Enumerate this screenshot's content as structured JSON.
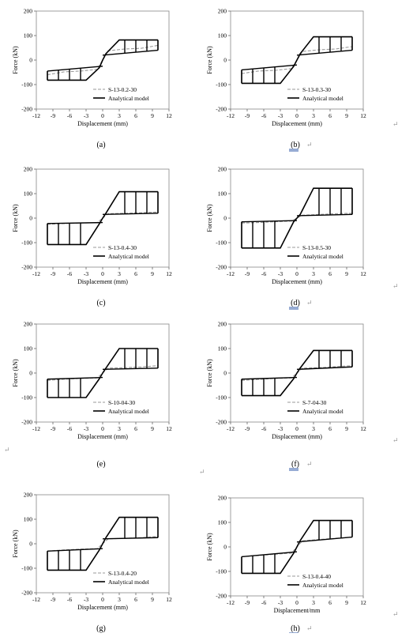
{
  "panels": [
    {
      "caption": "(a)",
      "legend_dashed": "S-13-0.2-30",
      "legend_solid": "Analytical model",
      "xlabel": "Displacement (mm)",
      "ylabel": "Force (kN)",
      "caption_marked": false,
      "return_mark": false
    },
    {
      "caption": "(b)",
      "legend_dashed": "S-13-0.3-30",
      "legend_solid": "Analytical model",
      "xlabel": "Displacement (mm)",
      "ylabel": "Force (kN)",
      "caption_marked": true,
      "return_mark": true
    },
    {
      "caption": "(c)",
      "legend_dashed": "S-13-0.4-30",
      "legend_solid": "Analytical model",
      "xlabel": "Displacement (mm)",
      "ylabel": "Force (kN)",
      "caption_marked": false,
      "return_mark": false
    },
    {
      "caption": "(d)",
      "legend_dashed": "S-13-0.5-30",
      "legend_solid": "Analytical model",
      "xlabel": "Displacement (mm)",
      "ylabel": "Force (kN)",
      "caption_marked": true,
      "return_mark": true
    },
    {
      "caption": "(e)",
      "legend_dashed": "S-10-04-30",
      "legend_solid": "Analytical model",
      "xlabel": "Displacement (mm)",
      "ylabel": "Force (kN)",
      "caption_marked": false,
      "return_mark": false
    },
    {
      "caption": "(f)",
      "legend_dashed": "S-7-04-30",
      "legend_solid": "Analytical model",
      "xlabel": "Displacement (mm)",
      "ylabel": "Force (kN)",
      "caption_marked": true,
      "return_mark": true
    },
    {
      "caption": "(g)",
      "legend_dashed": "S-13-0.4-20",
      "legend_solid": "Analytical model",
      "xlabel": "Displacement (mm)",
      "ylabel": "Force (kN)",
      "caption_marked": false,
      "return_mark": false
    },
    {
      "caption": "(h)",
      "legend_dashed": "S-13-0.4-40",
      "legend_solid": "Analytical model",
      "xlabel": "Displacement/mm",
      "ylabel": "Force (kN)",
      "caption_marked": true,
      "return_mark": true
    }
  ],
  "margin_marks": {
    "symbol": "↵",
    "count": 4
  },
  "chart_data": [
    {
      "type": "line",
      "panel": "(a)",
      "xlabel": "Displacement (mm)",
      "ylabel": "Force (kN)",
      "xlim": [
        -12,
        12
      ],
      "ylim": [
        -200,
        200
      ],
      "xticks": [
        -12,
        -9,
        -6,
        -3,
        0,
        3,
        6,
        9,
        12
      ],
      "yticks": [
        -200,
        -100,
        0,
        100,
        200
      ],
      "grid": false,
      "legend": "lower-right",
      "series": [
        {
          "name": "S-13-0.2-30",
          "style": "dashed",
          "x": [
            -10,
            -7,
            -4,
            -1,
            0,
            1,
            4,
            7,
            10
          ],
          "y": [
            -60,
            -48,
            -45,
            -38,
            0,
            38,
            45,
            48,
            60
          ]
        },
        {
          "name": "Analytical model",
          "style": "solid",
          "yield_pos": 82,
          "yield_neg": -82,
          "upper_lo": 20,
          "upper_hi": 40,
          "lower_lo": -25,
          "lower_hi": -45,
          "dmax": 10,
          "cycles": [
            2,
            4,
            6,
            8,
            10
          ]
        }
      ]
    },
    {
      "type": "line",
      "panel": "(b)",
      "xlabel": "Displacement (mm)",
      "ylabel": "Force (kN)",
      "xlim": [
        -12,
        12
      ],
      "ylim": [
        -200,
        200
      ],
      "xticks": [
        -12,
        -9,
        -6,
        -3,
        0,
        3,
        6,
        9,
        12
      ],
      "yticks": [
        -200,
        -100,
        0,
        100,
        200
      ],
      "grid": false,
      "legend": "lower-right",
      "series": [
        {
          "name": "S-13-0.3-30",
          "style": "dashed",
          "x": [
            -10,
            -7,
            -4,
            -1,
            0,
            1,
            4,
            7,
            10
          ],
          "y": [
            -55,
            -45,
            -42,
            -35,
            0,
            35,
            42,
            45,
            55
          ]
        },
        {
          "name": "Analytical model",
          "style": "solid",
          "yield_pos": 95,
          "yield_neg": -95,
          "upper_lo": 20,
          "upper_hi": 40,
          "lower_lo": -20,
          "lower_hi": -40,
          "dmax": 10,
          "cycles": [
            2,
            4,
            6,
            8,
            10
          ]
        }
      ]
    },
    {
      "type": "line",
      "panel": "(c)",
      "xlabel": "Displacement (mm)",
      "ylabel": "Force (kN)",
      "xlim": [
        -12,
        12
      ],
      "ylim": [
        -200,
        200
      ],
      "xticks": [
        -12,
        -9,
        -6,
        -3,
        0,
        3,
        6,
        9,
        12
      ],
      "yticks": [
        -200,
        -100,
        0,
        100,
        200
      ],
      "grid": false,
      "legend": "lower-right",
      "series": [
        {
          "name": "S-13-0.4-30",
          "style": "dashed",
          "x": [
            -10,
            -7,
            -4,
            -1,
            0,
            1,
            4,
            7,
            10
          ],
          "y": [
            -25,
            -22,
            -20,
            -18,
            0,
            18,
            20,
            22,
            25
          ]
        },
        {
          "name": "Analytical model",
          "style": "solid",
          "yield_pos": 108,
          "yield_neg": -108,
          "upper_lo": 15,
          "upper_hi": 20,
          "lower_lo": -18,
          "lower_hi": -22,
          "dmax": 10,
          "cycles": [
            2,
            4,
            6,
            8,
            10
          ]
        }
      ]
    },
    {
      "type": "line",
      "panel": "(d)",
      "xlabel": "Displacement (mm)",
      "ylabel": "Force (kN)",
      "xlim": [
        -12,
        12
      ],
      "ylim": [
        -200,
        200
      ],
      "xticks": [
        -12,
        -9,
        -6,
        -3,
        0,
        3,
        6,
        9,
        12
      ],
      "yticks": [
        -200,
        -100,
        0,
        100,
        200
      ],
      "grid": false,
      "legend": "lower-right",
      "series": [
        {
          "name": "S-13-0.5-30",
          "style": "dashed",
          "x": [
            -10,
            -7,
            -4,
            -1,
            0,
            1,
            4,
            7,
            10
          ],
          "y": [
            -20,
            -18,
            -15,
            -12,
            0,
            12,
            15,
            18,
            20
          ]
        },
        {
          "name": "Analytical model",
          "style": "solid",
          "yield_pos": 122,
          "yield_neg": -122,
          "upper_lo": 10,
          "upper_hi": 15,
          "lower_lo": -10,
          "lower_hi": -15,
          "dmax": 10,
          "cycles": [
            2,
            4,
            6,
            8,
            10
          ]
        }
      ]
    },
    {
      "type": "line",
      "panel": "(e)",
      "xlabel": "Displacement (mm)",
      "ylabel": "Force (kN)",
      "xlim": [
        -12,
        12
      ],
      "ylim": [
        -200,
        200
      ],
      "xticks": [
        -12,
        -9,
        -6,
        -3,
        0,
        3,
        6,
        9,
        12
      ],
      "yticks": [
        -200,
        -100,
        0,
        100,
        200
      ],
      "grid": false,
      "legend": "lower-right",
      "series": [
        {
          "name": "S-10-04-30",
          "style": "dashed",
          "x": [
            -10,
            -7,
            -4,
            -1,
            0,
            1,
            4,
            7,
            10
          ],
          "y": [
            -30,
            -25,
            -22,
            -20,
            0,
            20,
            22,
            25,
            30
          ]
        },
        {
          "name": "Analytical model",
          "style": "solid",
          "yield_pos": 100,
          "yield_neg": -100,
          "upper_lo": 15,
          "upper_hi": 20,
          "lower_lo": -18,
          "lower_hi": -25,
          "dmax": 10,
          "cycles": [
            2,
            4,
            6,
            8,
            10
          ]
        }
      ]
    },
    {
      "type": "line",
      "panel": "(f)",
      "xlabel": "Displacement (mm)",
      "ylabel": "Force (kN)",
      "xlim": [
        -12,
        12
      ],
      "ylim": [
        -200,
        200
      ],
      "xticks": [
        -12,
        -9,
        -6,
        -3,
        0,
        3,
        6,
        9,
        12
      ],
      "yticks": [
        -200,
        -100,
        0,
        100,
        200
      ],
      "grid": false,
      "legend": "lower-right",
      "series": [
        {
          "name": "S-7-04-30",
          "style": "dashed",
          "x": [
            -10,
            -7,
            -4,
            -1,
            0,
            1,
            4,
            7,
            10
          ],
          "y": [
            -30,
            -26,
            -22,
            -20,
            0,
            20,
            22,
            26,
            30
          ]
        },
        {
          "name": "Analytical model",
          "style": "solid",
          "yield_pos": 92,
          "yield_neg": -92,
          "upper_lo": 15,
          "upper_hi": 25,
          "lower_lo": -18,
          "lower_hi": -25,
          "dmax": 10,
          "cycles": [
            2,
            4,
            6,
            8,
            10
          ]
        }
      ]
    },
    {
      "type": "line",
      "panel": "(g)",
      "xlabel": "Displacement (mm)",
      "ylabel": "Force (kN)",
      "xlim": [
        -12,
        12
      ],
      "ylim": [
        -200,
        200
      ],
      "xticks": [
        -12,
        -9,
        -6,
        -3,
        0,
        3,
        6,
        9,
        12
      ],
      "yticks": [
        -200,
        -100,
        0,
        100,
        200
      ],
      "grid": false,
      "legend": "lower-right",
      "series": [
        {
          "name": "S-13-0.4-20",
          "style": "dashed",
          "x": [
            -10,
            -7,
            -4,
            -1,
            0,
            1,
            4,
            7,
            10
          ],
          "y": [
            -30,
            -25,
            -22,
            -20,
            0,
            20,
            22,
            25,
            30
          ]
        },
        {
          "name": "Analytical model",
          "style": "solid",
          "yield_pos": 108,
          "yield_neg": -108,
          "upper_lo": 20,
          "upper_hi": 25,
          "lower_lo": -20,
          "lower_hi": -30,
          "dmax": 10,
          "cycles": [
            2,
            4,
            6,
            8,
            10
          ]
        }
      ]
    },
    {
      "type": "line",
      "panel": "(h)",
      "xlabel": "Displacement/mm",
      "ylabel": "Force (kN)",
      "xlim": [
        -12,
        12
      ],
      "ylim": [
        -200,
        200
      ],
      "xticks": [
        -12,
        -9,
        -6,
        -3,
        0,
        3,
        6,
        9,
        12
      ],
      "yticks": [
        -200,
        -100,
        0,
        100,
        200
      ],
      "grid": false,
      "legend": "lower-right",
      "series": [
        {
          "name": "S-13-0.4-40",
          "style": "dashed",
          "x": [
            -10,
            -7,
            -4,
            -1,
            0,
            1,
            4,
            7,
            10
          ],
          "y": [
            -40,
            -35,
            -30,
            -25,
            0,
            25,
            30,
            35,
            40
          ]
        },
        {
          "name": "Analytical model",
          "style": "solid",
          "yield_pos": 108,
          "yield_neg": -108,
          "upper_lo": 20,
          "upper_hi": 40,
          "lower_lo": -20,
          "lower_hi": -40,
          "dmax": 10,
          "cycles": [
            2,
            4,
            6,
            8,
            10
          ]
        }
      ]
    }
  ]
}
